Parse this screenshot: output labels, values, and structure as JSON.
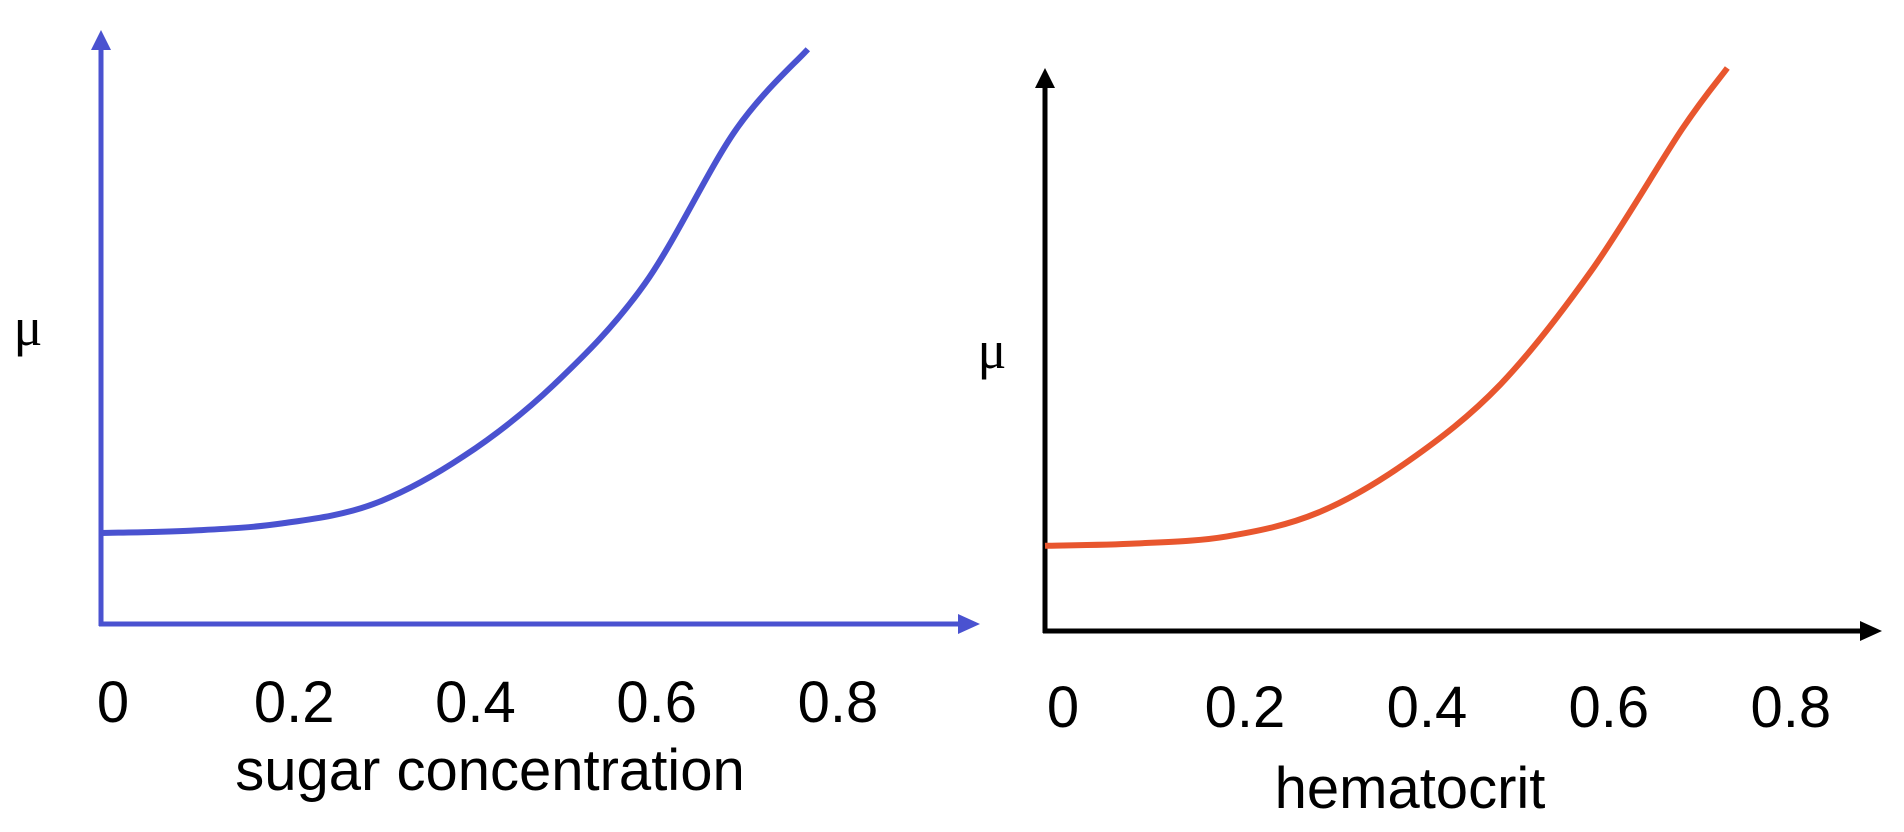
{
  "chart_data": [
    {
      "type": "line",
      "xlabel": "sugar concentration",
      "ylabel": "μ",
      "xticks": [
        "0",
        "0.2",
        "0.4",
        "0.6",
        "0.8"
      ],
      "xlim": [
        0,
        0.97
      ],
      "ylim": [
        0,
        12.4
      ],
      "grid": false,
      "axis_color": "#4a52d0",
      "line_color": "#4a52d0",
      "series": [
        {
          "x": [
            0,
            0.1,
            0.2,
            0.3,
            0.4,
            0.5,
            0.6,
            0.7,
            0.78
          ],
          "y": [
            1.9,
            1.95,
            2.1,
            2.5,
            3.5,
            5.0,
            7.1,
            10.3,
            12.0
          ]
        }
      ]
    },
    {
      "type": "line",
      "xlabel": "hematocrit",
      "ylabel": "μ",
      "xticks": [
        "0",
        "0.2",
        "0.4",
        "0.6",
        "0.8"
      ],
      "xlim": [
        0,
        0.92
      ],
      "ylim": [
        0,
        11.9
      ],
      "grid": false,
      "axis_color": "#000000",
      "line_color": "#e8562e",
      "series": [
        {
          "x": [
            0,
            0.1,
            0.2,
            0.3,
            0.4,
            0.5,
            0.6,
            0.7,
            0.75
          ],
          "y": [
            1.8,
            1.85,
            2.0,
            2.5,
            3.6,
            5.2,
            7.6,
            10.6,
            11.9
          ]
        }
      ]
    }
  ]
}
